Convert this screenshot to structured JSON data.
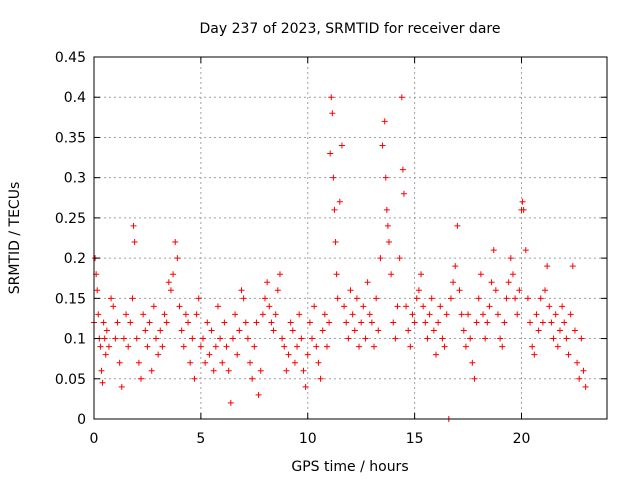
{
  "chart_data": {
    "type": "scatter",
    "title": "Day 237 of 2023, SRMTID for receiver dare",
    "xlabel": "GPS time / hours",
    "ylabel": "SRMTID / TECUs",
    "xlim": [
      0,
      24
    ],
    "ylim": [
      0,
      0.45
    ],
    "x_ticks": [
      0,
      5,
      10,
      15,
      20
    ],
    "x_tick_labels": [
      "0",
      "5",
      "10",
      "15",
      "20"
    ],
    "y_ticks": [
      0,
      0.05,
      0.1,
      0.15,
      0.2,
      0.25,
      0.3,
      0.35,
      0.4,
      0.45
    ],
    "y_tick_labels": [
      "0",
      "0.05",
      "0.1",
      "0.15",
      "0.2",
      "0.25",
      "0.3",
      "0.35",
      "0.4",
      "0.45"
    ],
    "grid": true,
    "marker": "plus",
    "color": "#ff0000",
    "series": [
      {
        "name": "SRMTID",
        "points": [
          [
            0.0,
            0.12
          ],
          [
            0.05,
            0.2
          ],
          [
            0.1,
            0.18
          ],
          [
            0.15,
            0.16
          ],
          [
            0.2,
            0.13
          ],
          [
            0.25,
            0.1
          ],
          [
            0.3,
            0.09
          ],
          [
            0.35,
            0.06
          ],
          [
            0.4,
            0.045
          ],
          [
            0.45,
            0.12
          ],
          [
            0.5,
            0.1
          ],
          [
            0.55,
            0.08
          ],
          [
            0.6,
            0.11
          ],
          [
            0.7,
            0.09
          ],
          [
            0.8,
            0.15
          ],
          [
            0.9,
            0.14
          ],
          [
            1.0,
            0.1
          ],
          [
            1.1,
            0.12
          ],
          [
            1.2,
            0.07
          ],
          [
            1.3,
            0.04
          ],
          [
            1.4,
            0.1
          ],
          [
            1.5,
            0.13
          ],
          [
            1.6,
            0.09
          ],
          [
            1.7,
            0.12
          ],
          [
            1.8,
            0.15
          ],
          [
            1.85,
            0.24
          ],
          [
            1.9,
            0.22
          ],
          [
            2.0,
            0.1
          ],
          [
            2.1,
            0.07
          ],
          [
            2.2,
            0.05
          ],
          [
            2.3,
            0.13
          ],
          [
            2.4,
            0.11
          ],
          [
            2.5,
            0.09
          ],
          [
            2.6,
            0.12
          ],
          [
            2.7,
            0.06
          ],
          [
            2.8,
            0.14
          ],
          [
            2.9,
            0.1
          ],
          [
            3.0,
            0.08
          ],
          [
            3.1,
            0.11
          ],
          [
            3.2,
            0.09
          ],
          [
            3.3,
            0.13
          ],
          [
            3.4,
            0.12
          ],
          [
            3.5,
            0.17
          ],
          [
            3.6,
            0.16
          ],
          [
            3.7,
            0.18
          ],
          [
            3.8,
            0.22
          ],
          [
            3.9,
            0.2
          ],
          [
            4.0,
            0.14
          ],
          [
            4.1,
            0.11
          ],
          [
            4.2,
            0.09
          ],
          [
            4.3,
            0.13
          ],
          [
            4.4,
            0.12
          ],
          [
            4.5,
            0.07
          ],
          [
            4.6,
            0.1
          ],
          [
            4.7,
            0.05
          ],
          [
            4.8,
            0.13
          ],
          [
            4.9,
            0.15
          ],
          [
            5.0,
            0.09
          ],
          [
            5.1,
            0.1
          ],
          [
            5.2,
            0.07
          ],
          [
            5.3,
            0.12
          ],
          [
            5.4,
            0.08
          ],
          [
            5.5,
            0.11
          ],
          [
            5.6,
            0.06
          ],
          [
            5.7,
            0.09
          ],
          [
            5.8,
            0.14
          ],
          [
            5.9,
            0.1
          ],
          [
            6.0,
            0.07
          ],
          [
            6.1,
            0.12
          ],
          [
            6.2,
            0.09
          ],
          [
            6.3,
            0.06
          ],
          [
            6.4,
            0.02
          ],
          [
            6.5,
            0.1
          ],
          [
            6.6,
            0.13
          ],
          [
            6.7,
            0.08
          ],
          [
            6.8,
            0.11
          ],
          [
            6.9,
            0.16
          ],
          [
            7.0,
            0.15
          ],
          [
            7.1,
            0.12
          ],
          [
            7.2,
            0.1
          ],
          [
            7.3,
            0.07
          ],
          [
            7.4,
            0.05
          ],
          [
            7.5,
            0.09
          ],
          [
            7.6,
            0.12
          ],
          [
            7.7,
            0.03
          ],
          [
            7.8,
            0.06
          ],
          [
            7.9,
            0.13
          ],
          [
            8.0,
            0.15
          ],
          [
            8.1,
            0.17
          ],
          [
            8.2,
            0.14
          ],
          [
            8.3,
            0.12
          ],
          [
            8.4,
            0.11
          ],
          [
            8.5,
            0.13
          ],
          [
            8.6,
            0.16
          ],
          [
            8.7,
            0.18
          ],
          [
            8.8,
            0.1
          ],
          [
            8.9,
            0.09
          ],
          [
            9.0,
            0.06
          ],
          [
            9.1,
            0.08
          ],
          [
            9.2,
            0.12
          ],
          [
            9.3,
            0.11
          ],
          [
            9.4,
            0.07
          ],
          [
            9.5,
            0.09
          ],
          [
            9.6,
            0.13
          ],
          [
            9.7,
            0.1
          ],
          [
            9.8,
            0.06
          ],
          [
            9.9,
            0.04
          ],
          [
            10.0,
            0.08
          ],
          [
            10.1,
            0.12
          ],
          [
            10.2,
            0.1
          ],
          [
            10.3,
            0.14
          ],
          [
            10.4,
            0.09
          ],
          [
            10.5,
            0.07
          ],
          [
            10.6,
            0.05
          ],
          [
            10.7,
            0.11
          ],
          [
            10.8,
            0.13
          ],
          [
            10.9,
            0.09
          ],
          [
            11.0,
            0.12
          ],
          [
            11.05,
            0.33
          ],
          [
            11.1,
            0.4
          ],
          [
            11.15,
            0.38
          ],
          [
            11.2,
            0.3
          ],
          [
            11.25,
            0.26
          ],
          [
            11.3,
            0.22
          ],
          [
            11.35,
            0.18
          ],
          [
            11.4,
            0.15
          ],
          [
            11.5,
            0.27
          ],
          [
            11.6,
            0.34
          ],
          [
            11.7,
            0.14
          ],
          [
            11.8,
            0.12
          ],
          [
            11.9,
            0.1
          ],
          [
            12.0,
            0.16
          ],
          [
            12.1,
            0.13
          ],
          [
            12.2,
            0.11
          ],
          [
            12.3,
            0.15
          ],
          [
            12.4,
            0.09
          ],
          [
            12.5,
            0.12
          ],
          [
            12.6,
            0.14
          ],
          [
            12.7,
            0.1
          ],
          [
            12.8,
            0.17
          ],
          [
            12.9,
            0.13
          ],
          [
            13.0,
            0.12
          ],
          [
            13.1,
            0.09
          ],
          [
            13.2,
            0.15
          ],
          [
            13.3,
            0.11
          ],
          [
            13.4,
            0.2
          ],
          [
            13.5,
            0.34
          ],
          [
            13.6,
            0.37
          ],
          [
            13.65,
            0.3
          ],
          [
            13.7,
            0.26
          ],
          [
            13.75,
            0.24
          ],
          [
            13.8,
            0.22
          ],
          [
            13.9,
            0.18
          ],
          [
            14.0,
            0.12
          ],
          [
            14.1,
            0.1
          ],
          [
            14.2,
            0.14
          ],
          [
            14.3,
            0.2
          ],
          [
            14.4,
            0.4
          ],
          [
            14.45,
            0.31
          ],
          [
            14.5,
            0.28
          ],
          [
            14.6,
            0.14
          ],
          [
            14.7,
            0.11
          ],
          [
            14.8,
            0.09
          ],
          [
            14.9,
            0.13
          ],
          [
            15.0,
            0.12
          ],
          [
            15.1,
            0.15
          ],
          [
            15.2,
            0.16
          ],
          [
            15.3,
            0.18
          ],
          [
            15.4,
            0.14
          ],
          [
            15.5,
            0.12
          ],
          [
            15.6,
            0.1
          ],
          [
            15.7,
            0.13
          ],
          [
            15.8,
            0.15
          ],
          [
            15.9,
            0.11
          ],
          [
            16.0,
            0.08
          ],
          [
            16.1,
            0.12
          ],
          [
            16.2,
            0.14
          ],
          [
            16.3,
            0.1
          ],
          [
            16.4,
            0.09
          ],
          [
            16.5,
            0.13
          ],
          [
            16.6,
            0.0
          ],
          [
            16.7,
            0.15
          ],
          [
            16.8,
            0.17
          ],
          [
            16.9,
            0.19
          ],
          [
            17.0,
            0.24
          ],
          [
            17.1,
            0.16
          ],
          [
            17.2,
            0.13
          ],
          [
            17.3,
            0.11
          ],
          [
            17.4,
            0.09
          ],
          [
            17.5,
            0.13
          ],
          [
            17.6,
            0.1
          ],
          [
            17.7,
            0.07
          ],
          [
            17.8,
            0.05
          ],
          [
            17.9,
            0.12
          ],
          [
            18.0,
            0.15
          ],
          [
            18.1,
            0.18
          ],
          [
            18.2,
            0.13
          ],
          [
            18.3,
            0.1
          ],
          [
            18.4,
            0.12
          ],
          [
            18.5,
            0.14
          ],
          [
            18.6,
            0.17
          ],
          [
            18.7,
            0.21
          ],
          [
            18.8,
            0.16
          ],
          [
            18.9,
            0.13
          ],
          [
            19.0,
            0.1
          ],
          [
            19.1,
            0.09
          ],
          [
            19.2,
            0.12
          ],
          [
            19.3,
            0.15
          ],
          [
            19.4,
            0.17
          ],
          [
            19.5,
            0.2
          ],
          [
            19.6,
            0.18
          ],
          [
            19.7,
            0.15
          ],
          [
            19.8,
            0.13
          ],
          [
            19.9,
            0.16
          ],
          [
            20.0,
            0.26
          ],
          [
            20.05,
            0.27
          ],
          [
            20.1,
            0.26
          ],
          [
            20.2,
            0.21
          ],
          [
            20.3,
            0.15
          ],
          [
            20.4,
            0.12
          ],
          [
            20.5,
            0.09
          ],
          [
            20.6,
            0.08
          ],
          [
            20.7,
            0.13
          ],
          [
            20.8,
            0.11
          ],
          [
            20.9,
            0.15
          ],
          [
            21.0,
            0.12
          ],
          [
            21.1,
            0.16
          ],
          [
            21.2,
            0.19
          ],
          [
            21.3,
            0.14
          ],
          [
            21.4,
            0.12
          ],
          [
            21.5,
            0.1
          ],
          [
            21.6,
            0.13
          ],
          [
            21.7,
            0.09
          ],
          [
            21.8,
            0.11
          ],
          [
            21.9,
            0.14
          ],
          [
            22.0,
            0.12
          ],
          [
            22.1,
            0.1
          ],
          [
            22.2,
            0.08
          ],
          [
            22.3,
            0.13
          ],
          [
            22.4,
            0.19
          ],
          [
            22.5,
            0.11
          ],
          [
            22.6,
            0.07
          ],
          [
            22.7,
            0.05
          ],
          [
            22.8,
            0.1
          ],
          [
            22.9,
            0.06
          ],
          [
            23.0,
            0.04
          ]
        ]
      }
    ]
  }
}
